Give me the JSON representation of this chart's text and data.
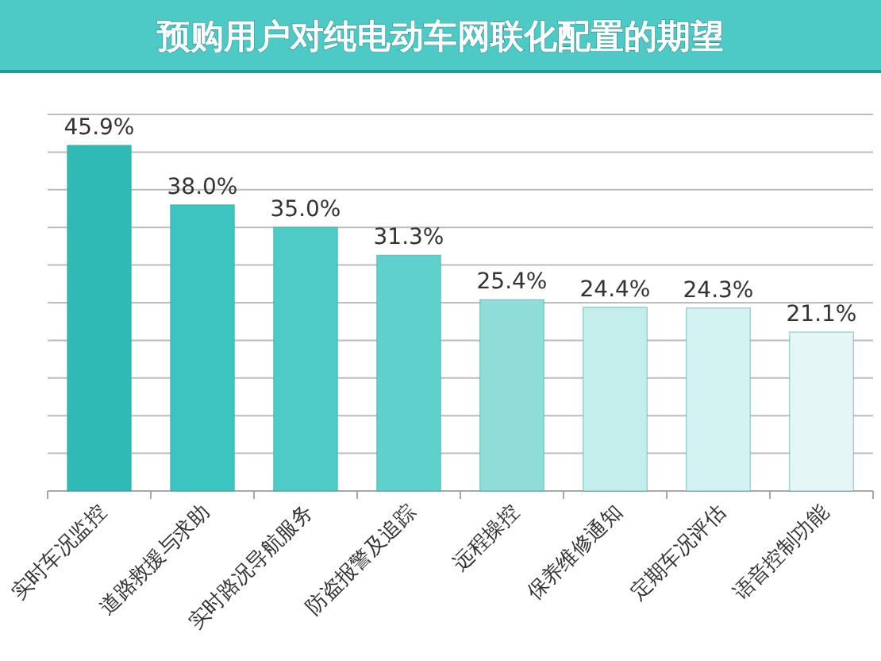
{
  "chart_data": {
    "type": "bar",
    "title": "预购用户对纯电动车网联化配置的期望",
    "categories": [
      "实时车况监控",
      "道路救援与求助",
      "实时路况导航服务",
      "防盗报警及追踪",
      "远程操控",
      "保养维修通知",
      "定期车况评估",
      "语音控制功能"
    ],
    "values": [
      45.9,
      38.0,
      35.0,
      31.3,
      25.4,
      24.4,
      24.3,
      21.1
    ],
    "value_labels": [
      "45.9%",
      "38.0%",
      "35.0%",
      "31.3%",
      "25.4%",
      "24.4%",
      "24.3%",
      "21.1%"
    ],
    "colors": [
      "#2fbab5",
      "#3cc5c0",
      "#4ecbc7",
      "#5fd0cc",
      "#8fdcd9",
      "#c3eeec",
      "#d3f3f2",
      "#e4f7f6"
    ],
    "ylim": [
      0,
      50
    ],
    "yticks": [
      {
        "value": 0,
        "label": null
      },
      {
        "value": 5,
        "label": null
      },
      {
        "value": 10,
        "label": null
      },
      {
        "value": 15,
        "label": null
      },
      {
        "value": 20,
        "label": null
      },
      {
        "value": 25,
        "label": null
      },
      {
        "value": 30,
        "label": null
      },
      {
        "value": 35,
        "label": null
      },
      {
        "value": 40,
        "label": null
      },
      {
        "value": 45,
        "label": null
      },
      {
        "value": 50,
        "label": null
      }
    ],
    "grid": "y",
    "tick_labels": "x"
  }
}
